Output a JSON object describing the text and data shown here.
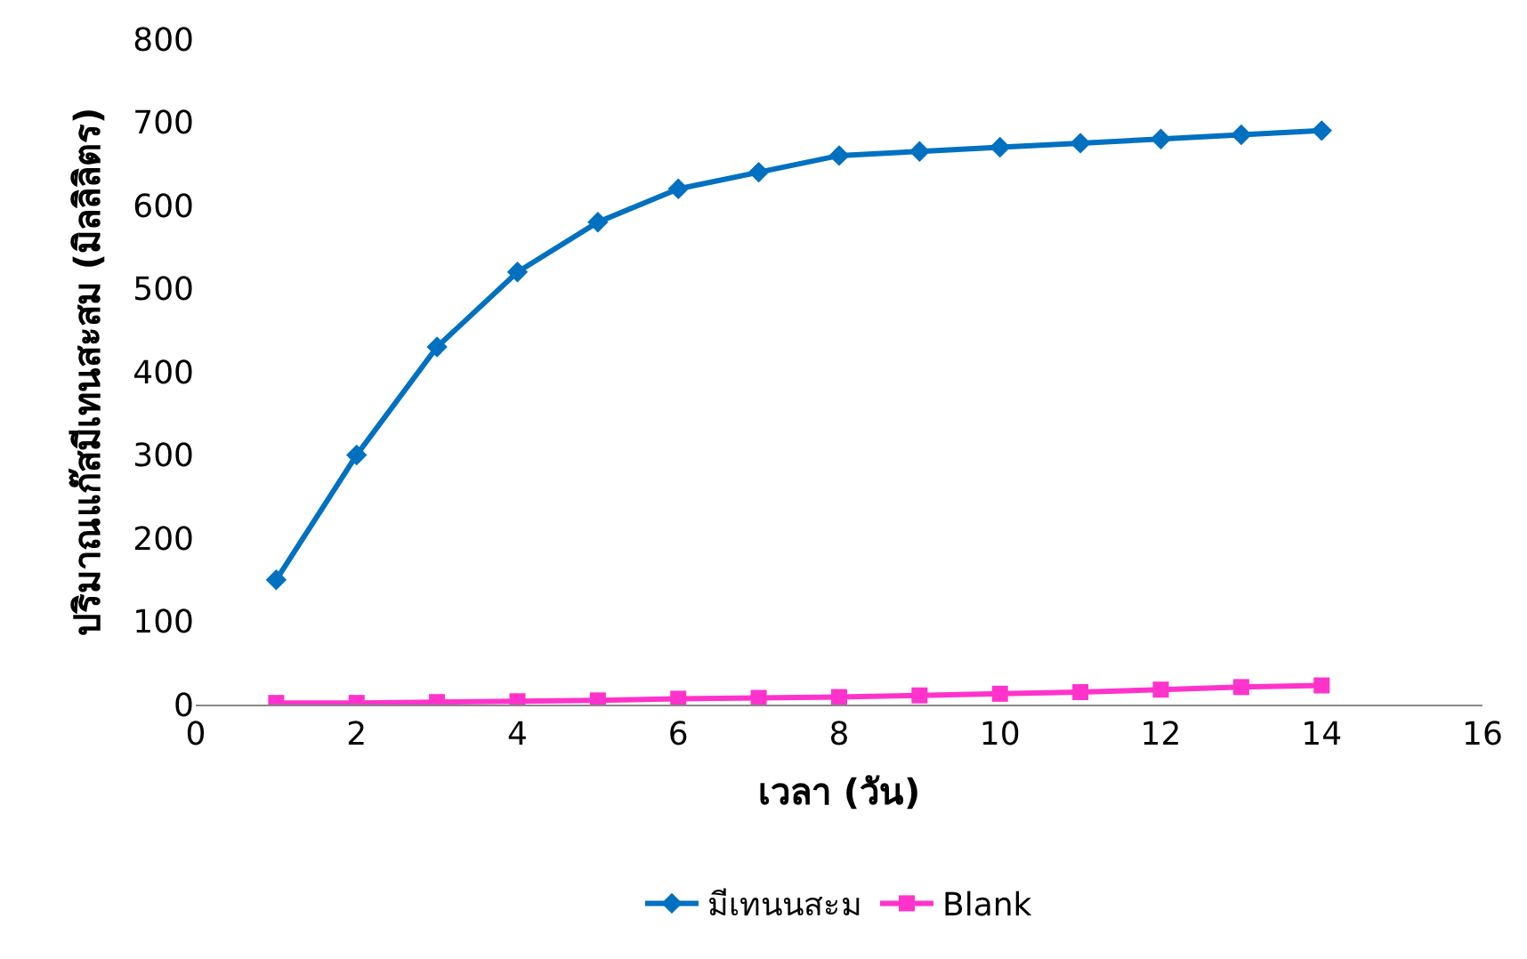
{
  "chart_data": {
    "type": "line",
    "xlabel": "เวลา (วัน)",
    "ylabel": "ปริมาณแก๊สมีเทนสะสม (มิลลิลิตร)",
    "x": [
      1,
      2,
      3,
      4,
      5,
      6,
      7,
      8,
      9,
      10,
      11,
      12,
      13,
      14
    ],
    "series": [
      {
        "name": "มีเทนนสะม",
        "color": "#0070c0",
        "marker": "diamond",
        "values": [
          150,
          300,
          430,
          520,
          580,
          620,
          640,
          660,
          665,
          670,
          675,
          680,
          685,
          690
        ]
      },
      {
        "name": "Blank",
        "color": "#ff33cc",
        "marker": "square",
        "values": [
          2,
          2,
          3,
          4,
          5,
          7,
          8,
          9,
          11,
          13,
          15,
          18,
          21,
          23
        ]
      }
    ],
    "xlim": [
      0,
      16
    ],
    "xticks": [
      0,
      2,
      4,
      6,
      8,
      10,
      12,
      14,
      16
    ],
    "ylim": [
      0,
      800
    ],
    "yticks": [
      0,
      100,
      200,
      300,
      400,
      500,
      600,
      700,
      800
    ],
    "legend": "bottom",
    "line_style": "solid"
  }
}
